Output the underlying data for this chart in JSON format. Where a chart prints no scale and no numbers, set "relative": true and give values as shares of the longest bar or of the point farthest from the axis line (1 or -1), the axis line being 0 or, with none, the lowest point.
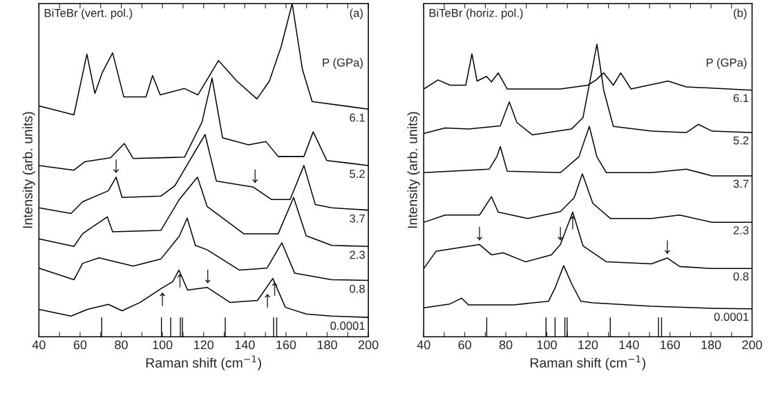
{
  "chart_data": [
    {
      "type": "line",
      "relative": true,
      "xlabel": "Raman shift (cm$^{−1}$)",
      "ylabel": "Intensity (arb. units)",
      "legend_title": "P (GPa)",
      "tick_labels": "x",
      "xlim": [
        40,
        200
      ],
      "xticks": [
        40,
        {
          "value": 50,
          "label": null
        },
        60,
        {
          "value": 70,
          "label": null
        },
        80,
        {
          "value": 90,
          "label": null
        },
        100,
        {
          "value": 110,
          "label": null
        },
        120,
        {
          "value": 130,
          "label": null
        },
        140,
        {
          "value": 150,
          "label": null
        },
        160,
        {
          "value": 170,
          "label": null
        },
        180,
        {
          "value": 190,
          "label": null
        },
        200
      ],
      "annotations": [
        "BiTeBr (vert. pol.)",
        "(a)",
        {
          "text": "↓",
          "x": 77.5,
          "y": 0.479
        },
        {
          "text": "↓",
          "x": 145,
          "y": 0.449
        },
        {
          "text": "↑",
          "x": 100,
          "y": 0.144
        },
        {
          "text": "↑",
          "x": 108.5,
          "y": 0.2
        },
        {
          "text": "↓",
          "x": 122,
          "y": 0.148
        },
        {
          "text": "↑",
          "x": 151,
          "y": 0.14
        },
        {
          "text": "↑",
          "x": 154.5,
          "y": 0.175
        }
      ],
      "series": [
        {
          "name": "6.1",
          "color": "#000000",
          "x": [
            40,
            57,
            63.3,
            67.2,
            70.7,
            75.8,
            81.2,
            92,
            95.2,
            98.9,
            110.7,
            117.2,
            122.2,
            127.2,
            136.2,
            145.9,
            151.9,
            157.6,
            163,
            168,
            172.7,
            200
          ],
          "values": [
            0.693,
            0.666,
            0.848,
            0.73,
            0.792,
            0.852,
            0.72,
            0.72,
            0.784,
            0.726,
            0.745,
            0.726,
            0.777,
            0.829,
            0.767,
            0.714,
            0.767,
            0.87,
            1,
            0.802,
            0.706,
            0.683
          ]
        },
        {
          "name": "5.2",
          "color": "#000000",
          "x": [
            40,
            57,
            62.2,
            74.8,
            81.5,
            85.8,
            110.7,
            119.2,
            124.1,
            129.2,
            141.8,
            150.2,
            156.2,
            168.7,
            173.2,
            179.8,
            200
          ],
          "values": [
            0.514,
            0.5,
            0.525,
            0.537,
            0.58,
            0.535,
            0.539,
            0.644,
            0.776,
            0.597,
            0.576,
            0.586,
            0.541,
            0.541,
            0.615,
            0.529,
            0.514
          ]
        },
        {
          "name": "3.7",
          "color": "#000000",
          "x": [
            40,
            55.6,
            61.2,
            73.7,
            77.5,
            80.4,
            99.2,
            106,
            120.7,
            126.2,
            144.2,
            152.9,
            162,
            168.7,
            174.2,
            182.2,
            200
          ],
          "values": [
            0.387,
            0.37,
            0.405,
            0.438,
            0.479,
            0.418,
            0.422,
            0.453,
            0.607,
            0.467,
            0.449,
            0.412,
            0.412,
            0.514,
            0.397,
            0.387,
            0.38
          ]
        },
        {
          "name": "2.3",
          "color": "#000000",
          "x": [
            40,
            57,
            61.2,
            73.2,
            75.8,
            99.2,
            108.2,
            117,
            121.7,
            139.5,
            156.2,
            163.7,
            169.8,
            182.2,
            200
          ],
          "values": [
            0.294,
            0.271,
            0.309,
            0.36,
            0.315,
            0.319,
            0.412,
            0.479,
            0.391,
            0.309,
            0.309,
            0.418,
            0.303,
            0.274,
            0.271
          ]
        },
        {
          "name": "0.8",
          "color": "#000000",
          "x": [
            40,
            57,
            61.2,
            69.2,
            85.8,
            99.2,
            108.2,
            112,
            116,
            121.7,
            137.4,
            150.8,
            158,
            164.2,
            182.2,
            200
          ],
          "values": [
            0.206,
            0.171,
            0.22,
            0.237,
            0.212,
            0.233,
            0.302,
            0.356,
            0.274,
            0.261,
            0.2,
            0.206,
            0.282,
            0.191,
            0.171,
            0.169
          ]
        },
        {
          "name": "0.0001",
          "color": "#000000",
          "x": [
            40,
            55.6,
            63.6,
            73.7,
            80.4,
            89.2,
            99.2,
            105,
            108,
            112.2,
            121.7,
            132.8,
            146.2,
            153.6,
            159.7,
            169.8,
            182.2,
            200
          ],
          "values": [
            0.082,
            0.062,
            0.082,
            0.097,
            0.078,
            0.103,
            0.144,
            0.165,
            0.2,
            0.14,
            0.148,
            0.103,
            0.109,
            0.175,
            0.088,
            0.068,
            0.062,
            0.058
          ]
        },
        {
          "type": "bar",
          "color": "#000000",
          "x": [
            70.5,
            99.5,
            104,
            108.7,
            109.7,
            130.5,
            154,
            155.5
          ],
          "values": [
            0.058,
            0.058,
            0.058,
            0.058,
            0.058,
            0.058,
            0.058,
            0.058
          ]
        }
      ]
    },
    {
      "type": "line",
      "relative": true,
      "xlabel": "Raman shift (cm$^{−1}$)",
      "ylabel": "Intensity (arb. units)",
      "legend_title": "P (GPa)",
      "tick_labels": "x",
      "xlim": [
        40,
        200
      ],
      "xticks": [
        40,
        {
          "value": 50,
          "label": null
        },
        60,
        {
          "value": 70,
          "label": null
        },
        80,
        {
          "value": 90,
          "label": null
        },
        100,
        {
          "value": 110,
          "label": null
        },
        120,
        {
          "value": 130,
          "label": null
        },
        140,
        {
          "value": 150,
          "label": null
        },
        160,
        {
          "value": 170,
          "label": null
        },
        180,
        {
          "value": 190,
          "label": null
        },
        200
      ],
      "annotations": [
        "BiTeBr (horiz. pol.)",
        "(b)",
        {
          "text": "↓",
          "x": 67.2,
          "y": 0.315
        },
        {
          "text": "↓",
          "x": 106.6,
          "y": 0.315
        },
        {
          "text": "↑",
          "x": 112.6,
          "y": 0.426
        },
        {
          "text": "↓",
          "x": 158.7,
          "y": 0.269
        }
      ],
      "series": [
        {
          "name": "6.1",
          "color": "#000000",
          "x": [
            40,
            47,
            52.8,
            60.5,
            63.5,
            66,
            70.6,
            73,
            76.3,
            80.7,
            106.6,
            120,
            124,
            127.7,
            132.4,
            136,
            141,
            159,
            168,
            180.5,
            200
          ],
          "values": [
            0.847,
            0.878,
            0.86,
            0.86,
            0.967,
            0.874,
            0.89,
            0.871,
            0.902,
            0.847,
            0.847,
            0.86,
            0.878,
            0.902,
            0.86,
            0.902,
            0.847,
            0.874,
            0.854,
            0.85,
            0.843
          ]
        },
        {
          "name": "5.2",
          "color": "#000000",
          "x": [
            40,
            50.4,
            61.8,
            77.3,
            81.7,
            85.4,
            93,
            112,
            117.6,
            124.4,
            127.7,
            132.4,
            151,
            168,
            173.8,
            180.5,
            200
          ],
          "values": [
            0.695,
            0.714,
            0.71,
            0.721,
            0.803,
            0.732,
            0.69,
            0.71,
            0.749,
            1,
            0.843,
            0.719,
            0.703,
            0.698,
            0.726,
            0.703,
            0.698
          ]
        },
        {
          "name": "3.7",
          "color": "#000000",
          "x": [
            40,
            52.8,
            71.9,
            75.6,
            77.3,
            80.7,
            106.6,
            115.6,
            120.7,
            124.4,
            129,
            151,
            168,
            180.5,
            200
          ],
          "values": [
            0.561,
            0.566,
            0.573,
            0.615,
            0.65,
            0.566,
            0.561,
            0.615,
            0.719,
            0.615,
            0.561,
            0.561,
            0.573,
            0.55,
            0.55
          ]
        },
        {
          "name": "2.3",
          "color": "#000000",
          "x": [
            40,
            50.4,
            67.2,
            73,
            76.3,
            90.7,
            106.6,
            113.3,
            117.3,
            122.4,
            131,
            151,
            164.7,
            180.5,
            200
          ],
          "values": [
            0.391,
            0.416,
            0.416,
            0.479,
            0.426,
            0.404,
            0.428,
            0.475,
            0.557,
            0.456,
            0.404,
            0.404,
            0.416,
            0.391,
            0.391
          ]
        },
        {
          "name": "0.8",
          "color": "#000000",
          "x": [
            40,
            46,
            67.2,
            73,
            78.7,
            89.7,
            102.2,
            106.6,
            112.6,
            117.6,
            129,
            151,
            158.7,
            164.7,
            180.5,
            200
          ],
          "values": [
            0.233,
            0.292,
            0.315,
            0.28,
            0.287,
            0.256,
            0.28,
            0.315,
            0.426,
            0.311,
            0.256,
            0.249,
            0.269,
            0.24,
            0.233,
            0.233
          ]
        },
        {
          "name": "0.0001",
          "color": "#000000",
          "x": [
            40,
            52.8,
            58.5,
            61.8,
            84,
            100.8,
            104.2,
            108.2,
            112.2,
            116.6,
            122.4,
            151,
            180.5,
            200
          ],
          "values": [
            0.099,
            0.112,
            0.132,
            0.109,
            0.109,
            0.121,
            0.17,
            0.243,
            0.179,
            0.121,
            0.116,
            0.104,
            0.097,
            0.095
          ]
        },
        {
          "type": "bar",
          "color": "#000000",
          "x": [
            70.7,
            99.6,
            104,
            108.8,
            109.9,
            130.9,
            154.4,
            155.9
          ],
          "values": [
            0.066,
            0.066,
            0.066,
            0.066,
            0.066,
            0.066,
            0.066,
            0.066
          ]
        }
      ]
    }
  ]
}
